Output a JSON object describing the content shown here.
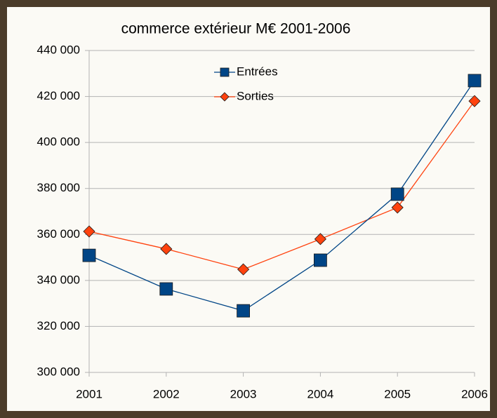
{
  "chart_data": {
    "type": "line",
    "title": "commerce extérieur M€ 2001-2006",
    "categories": [
      "2001",
      "2002",
      "2003",
      "2004",
      "2005",
      "2006"
    ],
    "series": [
      {
        "name": "Entrées",
        "color": "#004586",
        "marker": "square",
        "values": [
          350900,
          336300,
          326800,
          348800,
          377500,
          426900
        ]
      },
      {
        "name": "Sorties",
        "color": "#ff420e",
        "marker": "diamond",
        "values": [
          361300,
          353700,
          344800,
          358000,
          371700,
          418000
        ]
      }
    ],
    "ylim": [
      300000,
      440000
    ],
    "yticks": [
      {
        "value": 300000,
        "label": "300 000"
      },
      {
        "value": 320000,
        "label": "320 000"
      },
      {
        "value": 340000,
        "label": "340 000"
      },
      {
        "value": 360000,
        "label": "360 000"
      },
      {
        "value": 380000,
        "label": "380 000"
      },
      {
        "value": 400000,
        "label": "400 000"
      },
      {
        "value": 420000,
        "label": "420 000"
      },
      {
        "value": 440000,
        "label": "440 000"
      }
    ],
    "grid": true,
    "legend": "top"
  }
}
